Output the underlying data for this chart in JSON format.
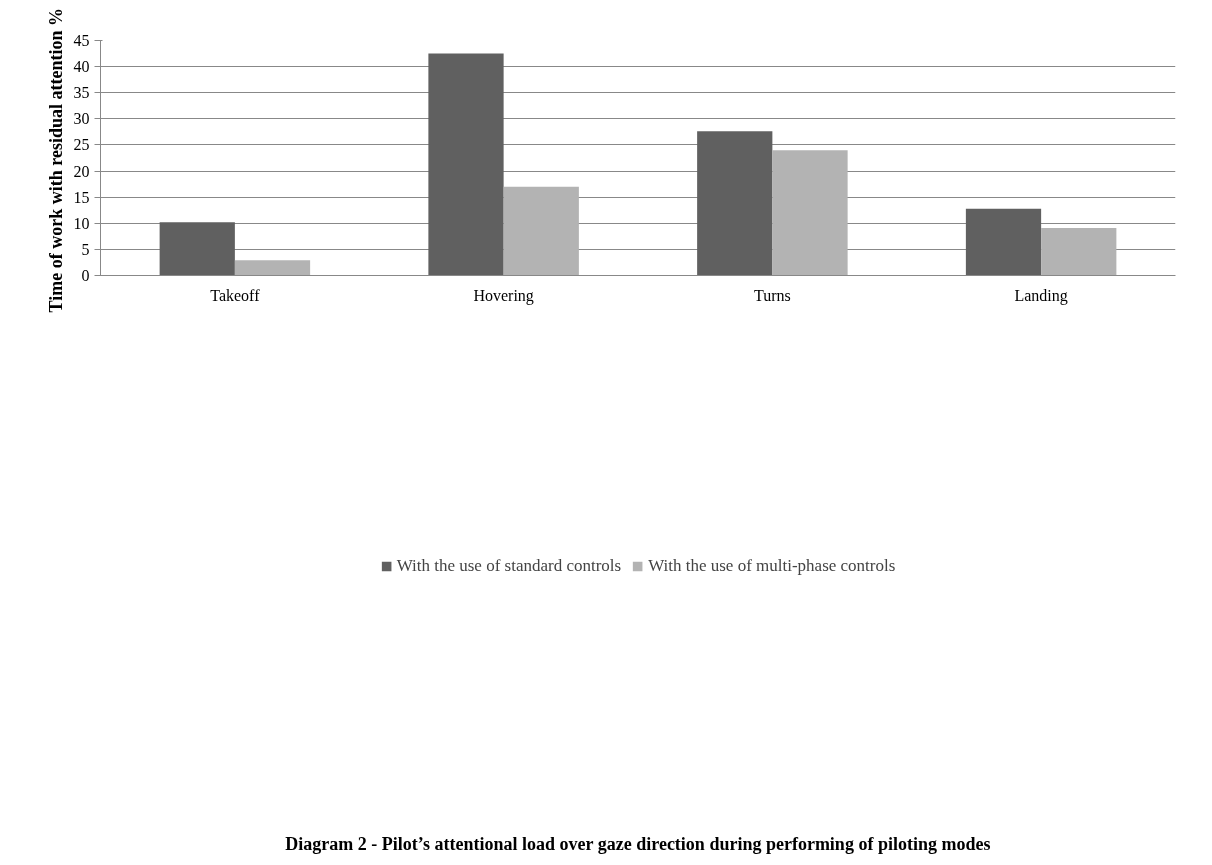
{
  "chart_data": {
    "type": "bar",
    "title": "Diagram 2 - Pilot’s attentional load over gaze direction during performing of piloting modes",
    "ylabel": "Time of work  with residual attention %",
    "categories": [
      "Takeoff",
      "Hovering",
      "Turns",
      "Landing"
    ],
    "series": [
      {
        "name": "With the use of standard controls",
        "color": "#606060",
        "values": [
          10.2,
          42.5,
          27.6,
          12.8
        ]
      },
      {
        "name": "With the use of multi-phase controls",
        "color": "#b3b3b3",
        "values": [
          2.9,
          17,
          24,
          9.1
        ]
      }
    ],
    "ylim": [
      0,
      45
    ],
    "yticks": [
      0,
      5,
      10,
      15,
      20,
      25,
      30,
      35,
      40,
      45
    ],
    "grid": "y",
    "legend": "bottom"
  }
}
